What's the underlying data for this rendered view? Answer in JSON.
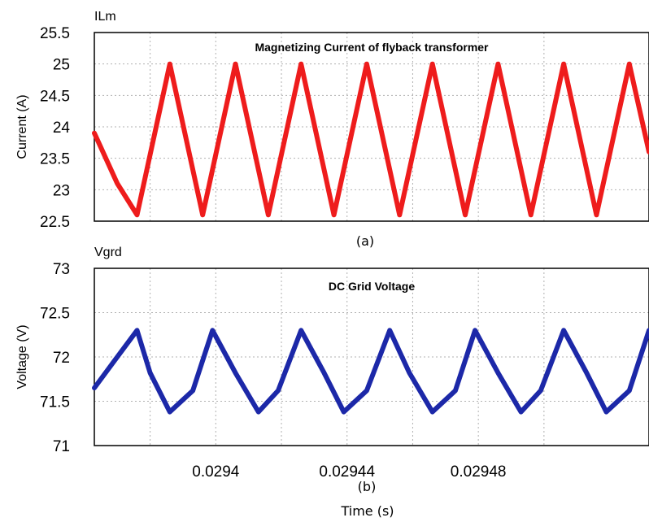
{
  "chart_data": [
    {
      "type": "line",
      "panel_caption": "(a)",
      "title": "Magnetizing Current of flyback transformer",
      "ylabel": "Current (A)",
      "ylim": [
        22.5,
        25.5
      ],
      "yticks": [
        "25.5",
        "25",
        "24.5",
        "24",
        "23.5",
        "23",
        "22.5"
      ],
      "xlim": [
        0.029363,
        0.029532
      ],
      "x_gridlines": [
        0.02938,
        0.0294,
        0.02942,
        0.02944,
        0.02946,
        0.02948,
        0.0295
      ],
      "series": [
        {
          "name": "ILm",
          "color": "#ee1c1c",
          "x": [
            0.029363,
            0.02937,
            0.029376,
            0.029386,
            0.029396,
            0.029406,
            0.029416,
            0.029426,
            0.029436,
            0.029446,
            0.029456,
            0.029466,
            0.029476,
            0.029486,
            0.029496,
            0.029506,
            0.029516,
            0.029526,
            0.029532
          ],
          "values": [
            23.9,
            23.1,
            22.6,
            25.0,
            22.6,
            25.0,
            22.6,
            25.0,
            22.6,
            25.0,
            22.6,
            25.0,
            22.6,
            25.0,
            22.6,
            25.0,
            22.6,
            25.0,
            23.6
          ]
        }
      ]
    },
    {
      "type": "line",
      "panel_caption": "(b)",
      "title": "DC Grid Voltage",
      "ylabel": "Voltage (V)",
      "xlabel": "Time (s)",
      "ylim": [
        71,
        73
      ],
      "yticks": [
        "73",
        "72.5",
        "72",
        "71.5",
        "71"
      ],
      "xlim": [
        0.029363,
        0.029532
      ],
      "xticks": [
        "0.0294",
        "0.02944",
        "0.02948"
      ],
      "xtick_values": [
        0.0294,
        0.02944,
        0.02948
      ],
      "x_gridlines": [
        0.02938,
        0.0294,
        0.02942,
        0.02944,
        0.02946,
        0.02948,
        0.0295
      ],
      "series": [
        {
          "name": "Vgrd",
          "color": "#1c28a8",
          "x": [
            0.029363,
            0.029369,
            0.029376,
            0.02938,
            0.029386,
            0.029393,
            0.029399,
            0.029406,
            0.029413,
            0.029419,
            0.029426,
            0.029433,
            0.029439,
            0.029446,
            0.029453,
            0.029459,
            0.029466,
            0.029473,
            0.029479,
            0.029486,
            0.029493,
            0.029499,
            0.029506,
            0.029513,
            0.029519,
            0.029526,
            0.029532
          ],
          "values": [
            71.65,
            71.95,
            72.3,
            71.82,
            71.38,
            71.62,
            72.3,
            71.82,
            71.38,
            71.62,
            72.3,
            71.82,
            71.38,
            71.62,
            72.3,
            71.82,
            71.38,
            71.62,
            72.3,
            71.82,
            71.38,
            71.62,
            72.3,
            71.82,
            71.38,
            71.62,
            72.3
          ]
        }
      ]
    }
  ]
}
